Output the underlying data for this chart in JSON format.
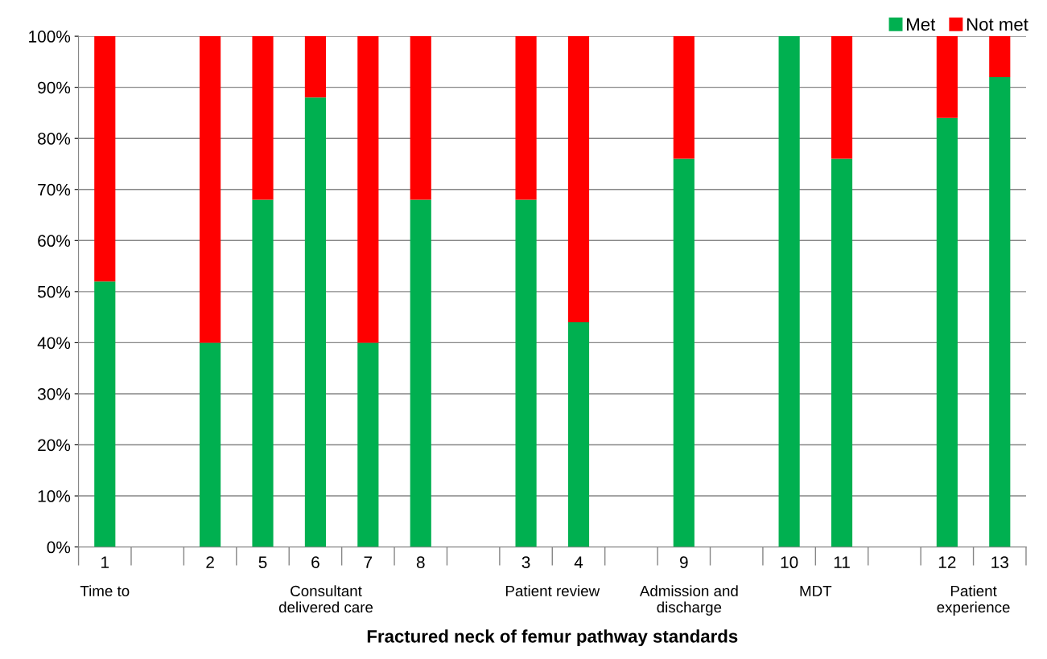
{
  "chart_data": {
    "type": "bar",
    "stacked": true,
    "xlabel": "Fractured neck of femur pathway standards",
    "categories": [
      "1",
      null,
      "2",
      "5",
      "6",
      "7",
      "8",
      null,
      "3",
      "4",
      null,
      "9",
      null,
      "10",
      "11",
      null,
      "12",
      "13"
    ],
    "series": [
      {
        "name": "Met",
        "color": "#00b050",
        "values": [
          52,
          null,
          40,
          68,
          88,
          40,
          68,
          null,
          68,
          44,
          null,
          76,
          null,
          100,
          76,
          null,
          84,
          92
        ]
      },
      {
        "name": "Not met",
        "color": "#ff0000",
        "values": [
          48,
          null,
          60,
          32,
          12,
          60,
          32,
          null,
          32,
          56,
          null,
          24,
          null,
          0,
          24,
          null,
          16,
          8
        ]
      }
    ],
    "ylim": [
      0,
      100
    ],
    "yticks": [
      {
        "value": 0,
        "label": "0%"
      },
      {
        "value": 10,
        "label": "10%"
      },
      {
        "value": 20,
        "label": "20%"
      },
      {
        "value": 30,
        "label": "30%"
      },
      {
        "value": 40,
        "label": "40%"
      },
      {
        "value": 50,
        "label": "50%"
      },
      {
        "value": 60,
        "label": "60%"
      },
      {
        "value": 70,
        "label": "70%"
      },
      {
        "value": 80,
        "label": "80%"
      },
      {
        "value": 90,
        "label": "90%"
      },
      {
        "value": 100,
        "label": "100%"
      }
    ],
    "grid": "y",
    "legend": "top right",
    "annotations": [
      "Time to",
      "Consultant\ndelivered care",
      "Patient review",
      "Admission and\ndischarge",
      "MDT",
      "Patient\nexperience"
    ]
  }
}
